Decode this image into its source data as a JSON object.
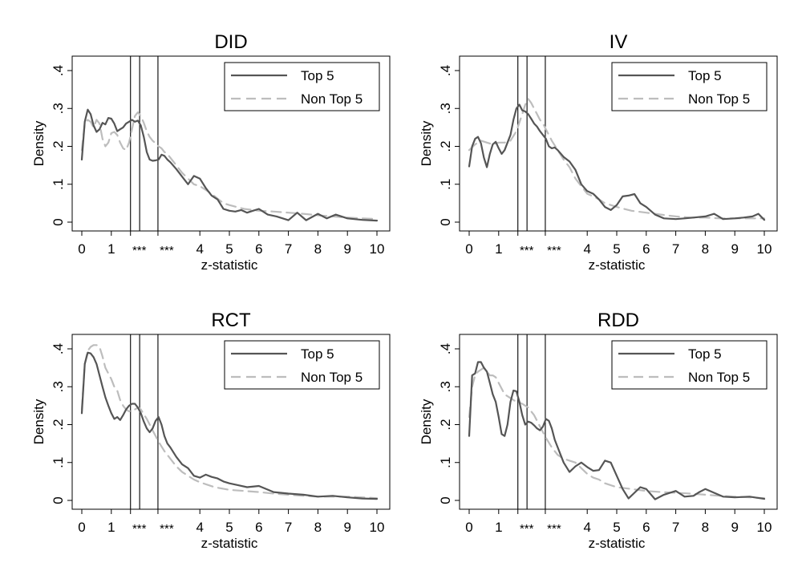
{
  "chart_data": [
    {
      "type": "line",
      "title": "DID",
      "xlabel": "z-statistic",
      "ylabel": "Density",
      "xlim": [
        0,
        10
      ],
      "ylim": [
        0,
        0.4
      ],
      "xticks": [
        "0",
        "1",
        "***",
        "***",
        "4",
        "5",
        "6",
        "7",
        "8",
        "9",
        "10"
      ],
      "yticks": [
        "0",
        ".1",
        ".2",
        ".3",
        ".4"
      ],
      "legend_position": "top-right",
      "significance_lines": [
        1.65,
        1.96,
        2.58
      ],
      "series": [
        {
          "name": "Top 5",
          "style": "solid",
          "x": [
            0,
            0.1,
            0.2,
            0.3,
            0.4,
            0.5,
            0.6,
            0.7,
            0.8,
            0.9,
            1.0,
            1.1,
            1.2,
            1.3,
            1.4,
            1.5,
            1.6,
            1.7,
            1.8,
            1.9,
            2.0,
            2.1,
            2.2,
            2.3,
            2.4,
            2.5,
            2.6,
            2.7,
            2.8,
            2.9,
            3.0,
            3.2,
            3.4,
            3.6,
            3.8,
            4.0,
            4.2,
            4.4,
            4.6,
            4.8,
            5.0,
            5.2,
            5.4,
            5.6,
            5.8,
            6.0,
            6.3,
            6.6,
            7.0,
            7.3,
            7.6,
            8.0,
            8.3,
            8.6,
            9.0,
            9.5,
            10.0
          ],
          "y": [
            0.165,
            0.265,
            0.297,
            0.285,
            0.255,
            0.238,
            0.245,
            0.262,
            0.258,
            0.275,
            0.273,
            0.26,
            0.24,
            0.245,
            0.25,
            0.26,
            0.265,
            0.27,
            0.265,
            0.268,
            0.255,
            0.225,
            0.185,
            0.165,
            0.162,
            0.163,
            0.165,
            0.178,
            0.175,
            0.165,
            0.158,
            0.14,
            0.12,
            0.1,
            0.122,
            0.115,
            0.09,
            0.07,
            0.06,
            0.035,
            0.03,
            0.028,
            0.032,
            0.025,
            0.03,
            0.035,
            0.02,
            0.015,
            0.005,
            0.025,
            0.005,
            0.022,
            0.01,
            0.02,
            0.01,
            0.006,
            0.004
          ]
        },
        {
          "name": "Non Top 5",
          "style": "dashed",
          "x": [
            0,
            0.1,
            0.2,
            0.3,
            0.4,
            0.5,
            0.6,
            0.7,
            0.8,
            0.9,
            1.0,
            1.1,
            1.2,
            1.3,
            1.4,
            1.5,
            1.6,
            1.7,
            1.8,
            1.9,
            2.0,
            2.1,
            2.2,
            2.3,
            2.4,
            2.5,
            2.6,
            2.7,
            2.8,
            2.9,
            3.0,
            3.2,
            3.4,
            3.6,
            3.8,
            4.0,
            4.2,
            4.4,
            4.6,
            4.8,
            5.0,
            5.5,
            6.0,
            6.5,
            7.0,
            7.5,
            8.0,
            8.5,
            9.0,
            9.5,
            10.0
          ],
          "y": [
            0.19,
            0.26,
            0.27,
            0.265,
            0.25,
            0.27,
            0.26,
            0.22,
            0.2,
            0.21,
            0.235,
            0.238,
            0.23,
            0.21,
            0.195,
            0.19,
            0.21,
            0.245,
            0.28,
            0.29,
            0.28,
            0.262,
            0.24,
            0.225,
            0.215,
            0.208,
            0.2,
            0.195,
            0.185,
            0.18,
            0.17,
            0.15,
            0.13,
            0.115,
            0.1,
            0.095,
            0.085,
            0.075,
            0.062,
            0.05,
            0.045,
            0.035,
            0.03,
            0.028,
            0.025,
            0.022,
            0.018,
            0.015,
            0.012,
            0.01,
            0.008
          ]
        }
      ]
    },
    {
      "type": "line",
      "title": "IV",
      "xlabel": "z-statistic",
      "ylabel": "Density",
      "xlim": [
        0,
        10
      ],
      "ylim": [
        0,
        0.4
      ],
      "xticks": [
        "0",
        "1",
        "***",
        "***",
        "4",
        "5",
        "6",
        "7",
        "8",
        "9",
        "10"
      ],
      "yticks": [
        "0",
        ".1",
        ".2",
        ".3",
        ".4"
      ],
      "legend_position": "top-right",
      "significance_lines": [
        1.65,
        1.96,
        2.58
      ],
      "series": [
        {
          "name": "Top 5",
          "style": "solid",
          "x": [
            0,
            0.1,
            0.2,
            0.3,
            0.4,
            0.5,
            0.6,
            0.7,
            0.8,
            0.9,
            1.0,
            1.1,
            1.2,
            1.3,
            1.4,
            1.5,
            1.6,
            1.7,
            1.8,
            1.9,
            2.0,
            2.1,
            2.2,
            2.3,
            2.4,
            2.5,
            2.6,
            2.7,
            2.8,
            2.9,
            3.0,
            3.2,
            3.4,
            3.6,
            3.8,
            4.0,
            4.2,
            4.4,
            4.6,
            4.8,
            5.0,
            5.2,
            5.4,
            5.6,
            5.8,
            6.0,
            6.3,
            6.6,
            7.0,
            7.3,
            7.6,
            8.0,
            8.3,
            8.6,
            9.0,
            9.3,
            9.6,
            9.8,
            10.0
          ],
          "y": [
            0.147,
            0.2,
            0.22,
            0.225,
            0.208,
            0.17,
            0.145,
            0.18,
            0.205,
            0.212,
            0.195,
            0.18,
            0.19,
            0.21,
            0.23,
            0.27,
            0.3,
            0.31,
            0.295,
            0.292,
            0.285,
            0.273,
            0.26,
            0.252,
            0.24,
            0.23,
            0.22,
            0.2,
            0.195,
            0.197,
            0.19,
            0.172,
            0.16,
            0.138,
            0.1,
            0.082,
            0.075,
            0.06,
            0.04,
            0.032,
            0.045,
            0.068,
            0.07,
            0.074,
            0.05,
            0.04,
            0.02,
            0.01,
            0.008,
            0.01,
            0.012,
            0.015,
            0.022,
            0.008,
            0.01,
            0.012,
            0.015,
            0.022,
            0.006
          ]
        },
        {
          "name": "Non Top 5",
          "style": "dashed",
          "x": [
            0,
            0.2,
            0.4,
            0.6,
            0.8,
            1.0,
            1.2,
            1.4,
            1.6,
            1.8,
            1.9,
            2.0,
            2.1,
            2.2,
            2.3,
            2.4,
            2.5,
            2.6,
            2.8,
            3.0,
            3.2,
            3.4,
            3.6,
            3.8,
            4.0,
            4.2,
            4.4,
            4.6,
            4.8,
            5.0,
            5.5,
            6.0,
            6.5,
            7.0,
            7.5,
            8.0,
            8.5,
            9.0,
            9.5,
            10.0
          ],
          "y": [
            0.19,
            0.205,
            0.215,
            0.21,
            0.205,
            0.21,
            0.21,
            0.215,
            0.24,
            0.285,
            0.31,
            0.325,
            0.315,
            0.3,
            0.285,
            0.27,
            0.26,
            0.245,
            0.215,
            0.19,
            0.165,
            0.145,
            0.115,
            0.095,
            0.075,
            0.068,
            0.06,
            0.05,
            0.045,
            0.04,
            0.03,
            0.025,
            0.02,
            0.015,
            0.012,
            0.012,
            0.01,
            0.01,
            0.01,
            0.01
          ]
        }
      ]
    },
    {
      "type": "line",
      "title": "RCT",
      "xlabel": "z-statistic",
      "ylabel": "Density",
      "xlim": [
        0,
        10
      ],
      "ylim": [
        0,
        0.4
      ],
      "xticks": [
        "0",
        "1",
        "***",
        "***",
        "4",
        "5",
        "6",
        "7",
        "8",
        "9",
        "10"
      ],
      "yticks": [
        "0",
        ".1",
        ".2",
        ".3",
        ".4"
      ],
      "legend_position": "top-right",
      "significance_lines": [
        1.65,
        1.96,
        2.58
      ],
      "series": [
        {
          "name": "Top 5",
          "style": "solid",
          "x": [
            0,
            0.1,
            0.2,
            0.3,
            0.4,
            0.5,
            0.6,
            0.7,
            0.8,
            0.9,
            1.0,
            1.1,
            1.2,
            1.3,
            1.4,
            1.5,
            1.6,
            1.7,
            1.8,
            1.9,
            2.0,
            2.1,
            2.2,
            2.3,
            2.4,
            2.5,
            2.6,
            2.7,
            2.8,
            2.9,
            3.0,
            3.2,
            3.4,
            3.6,
            3.8,
            4.0,
            4.2,
            4.4,
            4.6,
            4.8,
            5.0,
            5.3,
            5.6,
            6.0,
            6.5,
            7.0,
            7.5,
            8.0,
            8.5,
            9.0,
            9.5,
            10.0
          ],
          "y": [
            0.23,
            0.36,
            0.39,
            0.388,
            0.378,
            0.36,
            0.33,
            0.3,
            0.272,
            0.25,
            0.23,
            0.215,
            0.22,
            0.212,
            0.225,
            0.24,
            0.25,
            0.255,
            0.255,
            0.245,
            0.23,
            0.208,
            0.19,
            0.18,
            0.19,
            0.21,
            0.22,
            0.2,
            0.17,
            0.15,
            0.14,
            0.115,
            0.095,
            0.085,
            0.065,
            0.06,
            0.068,
            0.062,
            0.058,
            0.05,
            0.045,
            0.04,
            0.035,
            0.038,
            0.022,
            0.018,
            0.015,
            0.01,
            0.012,
            0.008,
            0.005,
            0.004
          ]
        },
        {
          "name": "Non Top 5",
          "style": "dashed",
          "x": [
            0,
            0.1,
            0.2,
            0.3,
            0.4,
            0.5,
            0.6,
            0.7,
            0.8,
            0.9,
            1.0,
            1.1,
            1.2,
            1.3,
            1.4,
            1.5,
            1.6,
            1.7,
            1.8,
            1.9,
            2.0,
            2.2,
            2.4,
            2.6,
            2.8,
            3.0,
            3.2,
            3.4,
            3.6,
            3.8,
            4.0,
            4.5,
            5.0,
            5.5,
            6.0,
            6.5,
            7.0,
            7.5,
            8.0,
            8.5,
            9.0,
            9.5,
            10.0
          ],
          "y": [
            0.24,
            0.36,
            0.395,
            0.405,
            0.41,
            0.41,
            0.405,
            0.38,
            0.35,
            0.335,
            0.32,
            0.3,
            0.29,
            0.265,
            0.25,
            0.24,
            0.235,
            0.238,
            0.24,
            0.245,
            0.24,
            0.215,
            0.185,
            0.155,
            0.13,
            0.11,
            0.09,
            0.075,
            0.065,
            0.055,
            0.048,
            0.035,
            0.028,
            0.025,
            0.022,
            0.018,
            0.015,
            0.012,
            0.01,
            0.01,
            0.01,
            0.008,
            0.006
          ]
        }
      ]
    },
    {
      "type": "line",
      "title": "RDD",
      "xlabel": "z-statistic",
      "ylabel": "Density",
      "xlim": [
        0,
        10
      ],
      "ylim": [
        0,
        0.4
      ],
      "xticks": [
        "0",
        "1",
        "***",
        "***",
        "4",
        "5",
        "6",
        "7",
        "8",
        "9",
        "10"
      ],
      "yticks": [
        "0",
        ".1",
        ".2",
        ".3",
        ".4"
      ],
      "legend_position": "top-right",
      "significance_lines": [
        1.65,
        1.96,
        2.58
      ],
      "series": [
        {
          "name": "Top 5",
          "style": "solid",
          "x": [
            0,
            0.1,
            0.2,
            0.3,
            0.4,
            0.5,
            0.6,
            0.7,
            0.8,
            0.9,
            1.0,
            1.1,
            1.2,
            1.3,
            1.4,
            1.5,
            1.6,
            1.7,
            1.8,
            1.9,
            2.0,
            2.1,
            2.2,
            2.3,
            2.4,
            2.5,
            2.6,
            2.7,
            2.8,
            2.9,
            3.0,
            3.2,
            3.4,
            3.6,
            3.8,
            4.0,
            4.2,
            4.4,
            4.6,
            4.8,
            5.0,
            5.2,
            5.4,
            5.6,
            5.8,
            6.0,
            6.3,
            6.6,
            7.0,
            7.3,
            7.6,
            7.8,
            8.0,
            8.3,
            8.6,
            9.0,
            9.5,
            10.0
          ],
          "y": [
            0.17,
            0.33,
            0.335,
            0.365,
            0.365,
            0.35,
            0.34,
            0.31,
            0.28,
            0.26,
            0.22,
            0.175,
            0.17,
            0.2,
            0.26,
            0.29,
            0.288,
            0.26,
            0.225,
            0.2,
            0.208,
            0.205,
            0.198,
            0.19,
            0.185,
            0.195,
            0.215,
            0.21,
            0.19,
            0.16,
            0.14,
            0.1,
            0.075,
            0.09,
            0.1,
            0.088,
            0.078,
            0.08,
            0.105,
            0.1,
            0.065,
            0.03,
            0.005,
            0.02,
            0.035,
            0.03,
            0.003,
            0.015,
            0.025,
            0.01,
            0.012,
            0.022,
            0.03,
            0.02,
            0.01,
            0.008,
            0.01,
            0.004
          ]
        },
        {
          "name": "Non Top 5",
          "style": "dashed",
          "x": [
            0,
            0.1,
            0.2,
            0.3,
            0.4,
            0.5,
            0.6,
            0.7,
            0.8,
            0.9,
            1.0,
            1.1,
            1.2,
            1.3,
            1.4,
            1.5,
            1.6,
            1.7,
            1.8,
            1.9,
            2.0,
            2.2,
            2.4,
            2.6,
            2.8,
            3.0,
            3.2,
            3.4,
            3.6,
            3.8,
            4.0,
            4.2,
            4.4,
            4.6,
            4.8,
            5.0,
            5.5,
            6.0,
            6.5,
            7.0,
            7.5,
            8.0,
            8.5,
            9.0,
            9.5,
            10.0
          ],
          "y": [
            0.22,
            0.3,
            0.33,
            0.34,
            0.345,
            0.35,
            0.34,
            0.33,
            0.33,
            0.325,
            0.31,
            0.295,
            0.28,
            0.275,
            0.27,
            0.265,
            0.26,
            0.258,
            0.255,
            0.25,
            0.245,
            0.225,
            0.195,
            0.165,
            0.14,
            0.12,
            0.11,
            0.105,
            0.1,
            0.085,
            0.07,
            0.06,
            0.055,
            0.045,
            0.04,
            0.035,
            0.03,
            0.025,
            0.022,
            0.02,
            0.018,
            0.015,
            0.012,
            0.01,
            0.008,
            0.006
          ]
        }
      ]
    }
  ]
}
